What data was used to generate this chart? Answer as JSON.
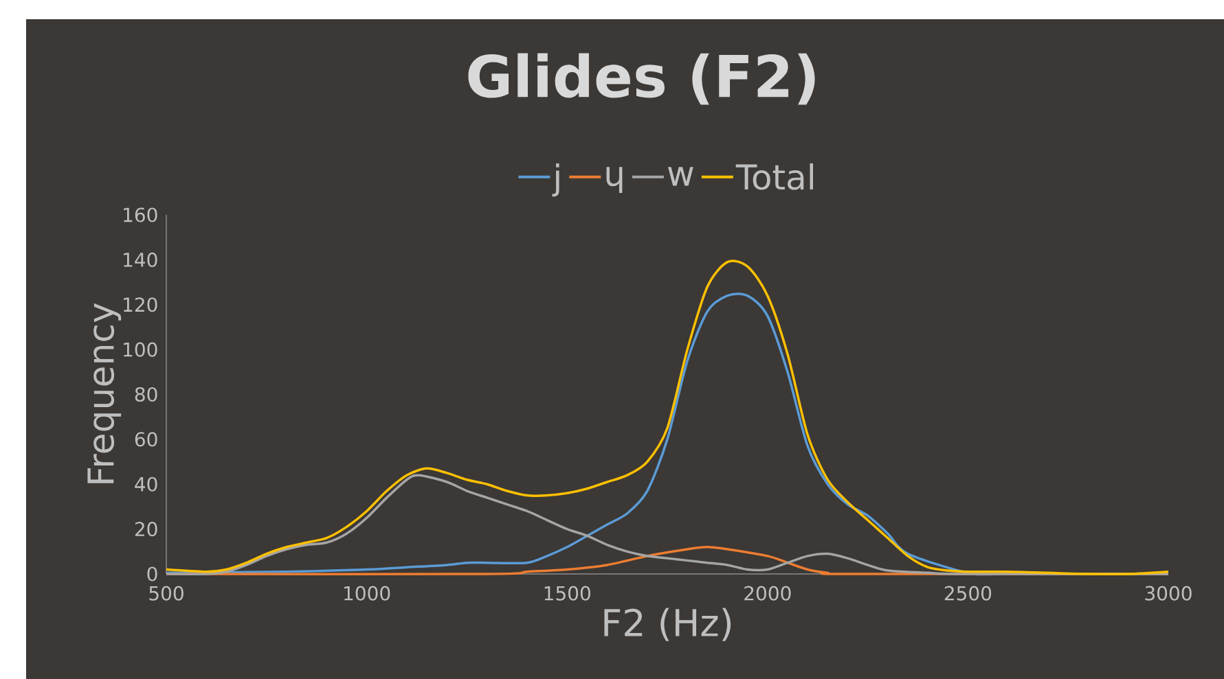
{
  "chart_data": {
    "type": "line",
    "title": "Glides (F2)",
    "xlabel": "F2 (Hz)",
    "ylabel": "Frequency",
    "xlim": [
      500,
      3000
    ],
    "xticks": [
      500,
      1000,
      1500,
      2000,
      2500,
      3000
    ],
    "ylim": [
      0,
      160
    ],
    "yticks": [
      0,
      20,
      40,
      60,
      80,
      100,
      120,
      140,
      160
    ],
    "legend": "top",
    "grid": false,
    "marker": "none",
    "line_style": "solid",
    "series": [
      {
        "name": "j",
        "color": "#5b9bd5",
        "x": [
          500,
          800,
          1000,
          1100,
          1200,
          1250,
          1300,
          1400,
          1450,
          1500,
          1550,
          1600,
          1650,
          1700,
          1750,
          1800,
          1850,
          1900,
          1950,
          2000,
          2050,
          2100,
          2150,
          2200,
          2250,
          2300,
          2350,
          2400,
          2500,
          2600,
          3000
        ],
        "values": [
          0.5,
          1,
          2,
          3,
          4,
          5,
          5,
          5,
          8,
          12,
          17,
          22,
          27,
          37,
          60,
          95,
          117,
          124,
          124,
          115,
          90,
          57,
          40,
          31,
          26,
          18,
          9,
          null,
          0.5,
          0,
          0
        ]
      },
      {
        "name": "ɥ",
        "color": "#ed7d31",
        "x": [
          500,
          1300,
          1400,
          1500,
          1600,
          1700,
          1800,
          1850,
          1900,
          2000,
          2050,
          2100,
          2150,
          2200,
          3000
        ],
        "values": [
          0,
          0,
          1,
          2,
          4,
          8,
          11,
          12,
          11,
          8,
          5,
          2,
          0.5,
          0,
          0
        ]
      },
      {
        "name": "w",
        "color": "#a5a5a5",
        "x": [
          500,
          600,
          650,
          700,
          750,
          800,
          850,
          900,
          950,
          1000,
          1050,
          1100,
          1130,
          1200,
          1250,
          1300,
          1350,
          1400,
          1450,
          1500,
          1550,
          1600,
          1650,
          1700,
          1750,
          1800,
          1850,
          1900,
          1950,
          2000,
          2050,
          2100,
          2150,
          2200,
          2250,
          2300,
          2400,
          2500,
          3000
        ],
        "values": [
          0,
          0,
          1,
          4,
          8,
          11,
          13,
          14,
          18,
          25,
          34,
          42,
          44,
          41,
          37,
          34,
          31,
          28,
          24,
          20,
          17,
          13,
          10,
          8,
          7,
          6,
          5,
          4,
          2,
          2,
          5,
          8,
          9,
          7,
          4,
          1.5,
          0.5,
          0,
          0
        ]
      },
      {
        "name": "Total",
        "color": "#ffc000",
        "x": [
          500,
          600,
          650,
          700,
          750,
          800,
          850,
          900,
          950,
          1000,
          1050,
          1100,
          1150,
          1200,
          1250,
          1300,
          1350,
          1400,
          1450,
          1500,
          1550,
          1600,
          1650,
          1700,
          1750,
          1800,
          1850,
          1900,
          1950,
          2000,
          2050,
          2100,
          2150,
          2200,
          2250,
          2300,
          2350,
          2400,
          2450,
          2500,
          2600,
          2700,
          2800,
          2900,
          3000
        ],
        "values": [
          2,
          1,
          2,
          5,
          9,
          12,
          14,
          16,
          21,
          28,
          37,
          44,
          47,
          45,
          42,
          40,
          37,
          35,
          35,
          36,
          38,
          41,
          44,
          50,
          65,
          100,
          128,
          139,
          137,
          124,
          98,
          62,
          42,
          32,
          24,
          16,
          8,
          3,
          1.5,
          1,
          1,
          0.5,
          0,
          0,
          1
        ]
      }
    ]
  }
}
